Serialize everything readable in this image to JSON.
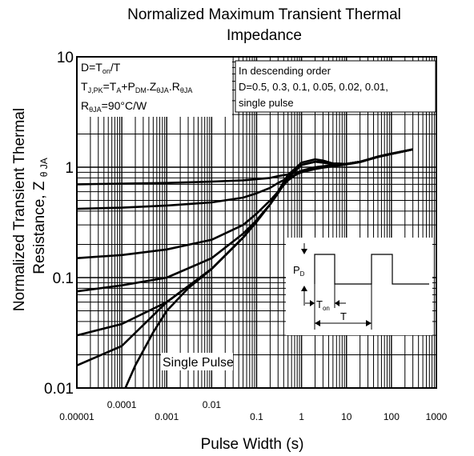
{
  "chart_data": {
    "type": "line",
    "title": "Normalized Maximum Transient Thermal Impedance",
    "title_lines": [
      "Normalized Maximum Transient Thermal",
      "Impedance"
    ],
    "xlabel": "Pulse Width (s)",
    "ylabel_lines": [
      "Normalized Transient Thermal",
      "Resistance, Z"
    ],
    "ylabel_sub": "θ JA",
    "x_scale": "log",
    "y_scale": "log",
    "xlim": [
      1e-05,
      1000
    ],
    "ylim": [
      0.01,
      10
    ],
    "x_ticks": [
      {
        "value": 1e-05,
        "label": "0.00001",
        "row": "low"
      },
      {
        "value": 0.0001,
        "label": "0.0001",
        "row": "high"
      },
      {
        "value": 0.001,
        "label": "0.001",
        "row": "low"
      },
      {
        "value": 0.01,
        "label": "0.01",
        "row": "high"
      },
      {
        "value": 0.1,
        "label": "0.1",
        "row": "low"
      },
      {
        "value": 1,
        "label": "1",
        "row": "low"
      },
      {
        "value": 10,
        "label": "10",
        "row": "low"
      },
      {
        "value": 100,
        "label": "100",
        "row": "low"
      },
      {
        "value": 1000,
        "label": "1000",
        "row": "low"
      }
    ],
    "y_ticks": [
      {
        "value": 0.01,
        "label": "0.01"
      },
      {
        "value": 0.1,
        "label": "0.1"
      },
      {
        "value": 1,
        "label": "1"
      },
      {
        "value": 10,
        "label": "10"
      }
    ],
    "grid": true,
    "series": [
      {
        "x": [
          1e-05,
          0.0001,
          0.001,
          0.01,
          0.05,
          0.1,
          0.2,
          0.3,
          0.5,
          1,
          2,
          3,
          5,
          10,
          20,
          50,
          100,
          300
        ],
        "y": [
          0.7,
          0.71,
          0.72,
          0.74,
          0.76,
          0.78,
          0.8,
          0.83,
          0.86,
          0.92,
          0.97,
          1.0,
          1.03,
          1.07,
          1.12,
          1.25,
          1.33,
          1.45
        ]
      },
      {
        "x": [
          1e-05,
          0.0001,
          0.001,
          0.01,
          0.05,
          0.1,
          0.2,
          0.3,
          0.5,
          1,
          2,
          3,
          5,
          10,
          20,
          50,
          100,
          300
        ],
        "y": [
          0.42,
          0.43,
          0.45,
          0.48,
          0.53,
          0.58,
          0.65,
          0.72,
          0.8,
          0.9,
          0.96,
          0.99,
          1.02,
          1.06,
          1.11,
          1.24,
          1.32,
          1.45
        ]
      },
      {
        "x": [
          1e-05,
          0.0001,
          0.001,
          0.01,
          0.05,
          0.1,
          0.2,
          0.3,
          0.5,
          1,
          2,
          3,
          5,
          10,
          20,
          50,
          100,
          300
        ],
        "y": [
          0.15,
          0.16,
          0.18,
          0.22,
          0.3,
          0.38,
          0.5,
          0.6,
          0.76,
          0.93,
          1.0,
          1.02,
          1.04,
          1.07,
          1.12,
          1.24,
          1.32,
          1.45
        ]
      },
      {
        "x": [
          1e-05,
          0.0001,
          0.001,
          0.01,
          0.05,
          0.1,
          0.2,
          0.3,
          0.5,
          1,
          2,
          3,
          5,
          10,
          20,
          50,
          100,
          300
        ],
        "y": [
          0.075,
          0.085,
          0.1,
          0.15,
          0.25,
          0.33,
          0.46,
          0.58,
          0.8,
          1.05,
          1.12,
          1.1,
          1.06,
          1.07,
          1.12,
          1.24,
          1.32,
          1.45
        ]
      },
      {
        "x": [
          1e-05,
          0.0001,
          0.001,
          0.01,
          0.05,
          0.1,
          0.2,
          0.3,
          0.5,
          1,
          2,
          3,
          5,
          10,
          20,
          50,
          100,
          300
        ],
        "y": [
          0.03,
          0.038,
          0.06,
          0.12,
          0.23,
          0.32,
          0.46,
          0.6,
          0.85,
          1.1,
          1.18,
          1.15,
          1.08,
          1.07,
          1.12,
          1.24,
          1.32,
          1.45
        ]
      },
      {
        "x": [
          1e-05,
          0.0001,
          0.001,
          0.01,
          0.05,
          0.1,
          0.2,
          0.3,
          0.5,
          1,
          2,
          3,
          5,
          10,
          20,
          50,
          100,
          300
        ],
        "y": [
          0.016,
          0.024,
          0.06,
          0.12,
          0.23,
          0.33,
          0.46,
          0.6,
          0.85,
          1.05,
          1.12,
          1.12,
          1.08,
          1.07,
          1.12,
          1.24,
          1.32,
          1.45
        ]
      },
      {
        "x": [
          0.00012,
          0.0002,
          0.0005,
          0.001,
          0.003,
          0.01,
          0.05,
          0.1,
          0.2,
          0.3,
          0.5,
          1,
          2,
          3,
          5,
          10,
          20,
          50,
          100,
          300
        ],
        "y": [
          0.01,
          0.016,
          0.032,
          0.05,
          0.08,
          0.12,
          0.23,
          0.33,
          0.46,
          0.6,
          0.85,
          1.05,
          1.12,
          1.12,
          1.08,
          1.07,
          1.12,
          1.24,
          1.32,
          1.45
        ]
      }
    ],
    "annotations": {
      "formula_box": {
        "line1": "D=T",
        "line1_sub": "on",
        "line1_tail": "/T",
        "line2_a": "T",
        "line2_a_sub": "J,PK",
        "line2_b": "=T",
        "line2_b_sub": "A",
        "line2_c": "+P",
        "line2_c_sub": "DM",
        "line2_d": ".Z",
        "line2_d_sub": "θJA",
        "line2_e": ".R",
        "line2_e_sub": "θJA",
        "line3_a": "R",
        "line3_a_sub": "θJA",
        "line3_b": "=90°C/W"
      },
      "order_box": {
        "line1": "In descending order",
        "line2": "D=0.5, 0.3, 0.1, 0.05, 0.02, 0.01,",
        "line3": "single pulse"
      },
      "single_pulse_label": "Single Pulse",
      "inset": {
        "pd": "P",
        "pd_sub": "D",
        "ton": "T",
        "ton_sub": "on",
        "period": "T"
      }
    }
  }
}
